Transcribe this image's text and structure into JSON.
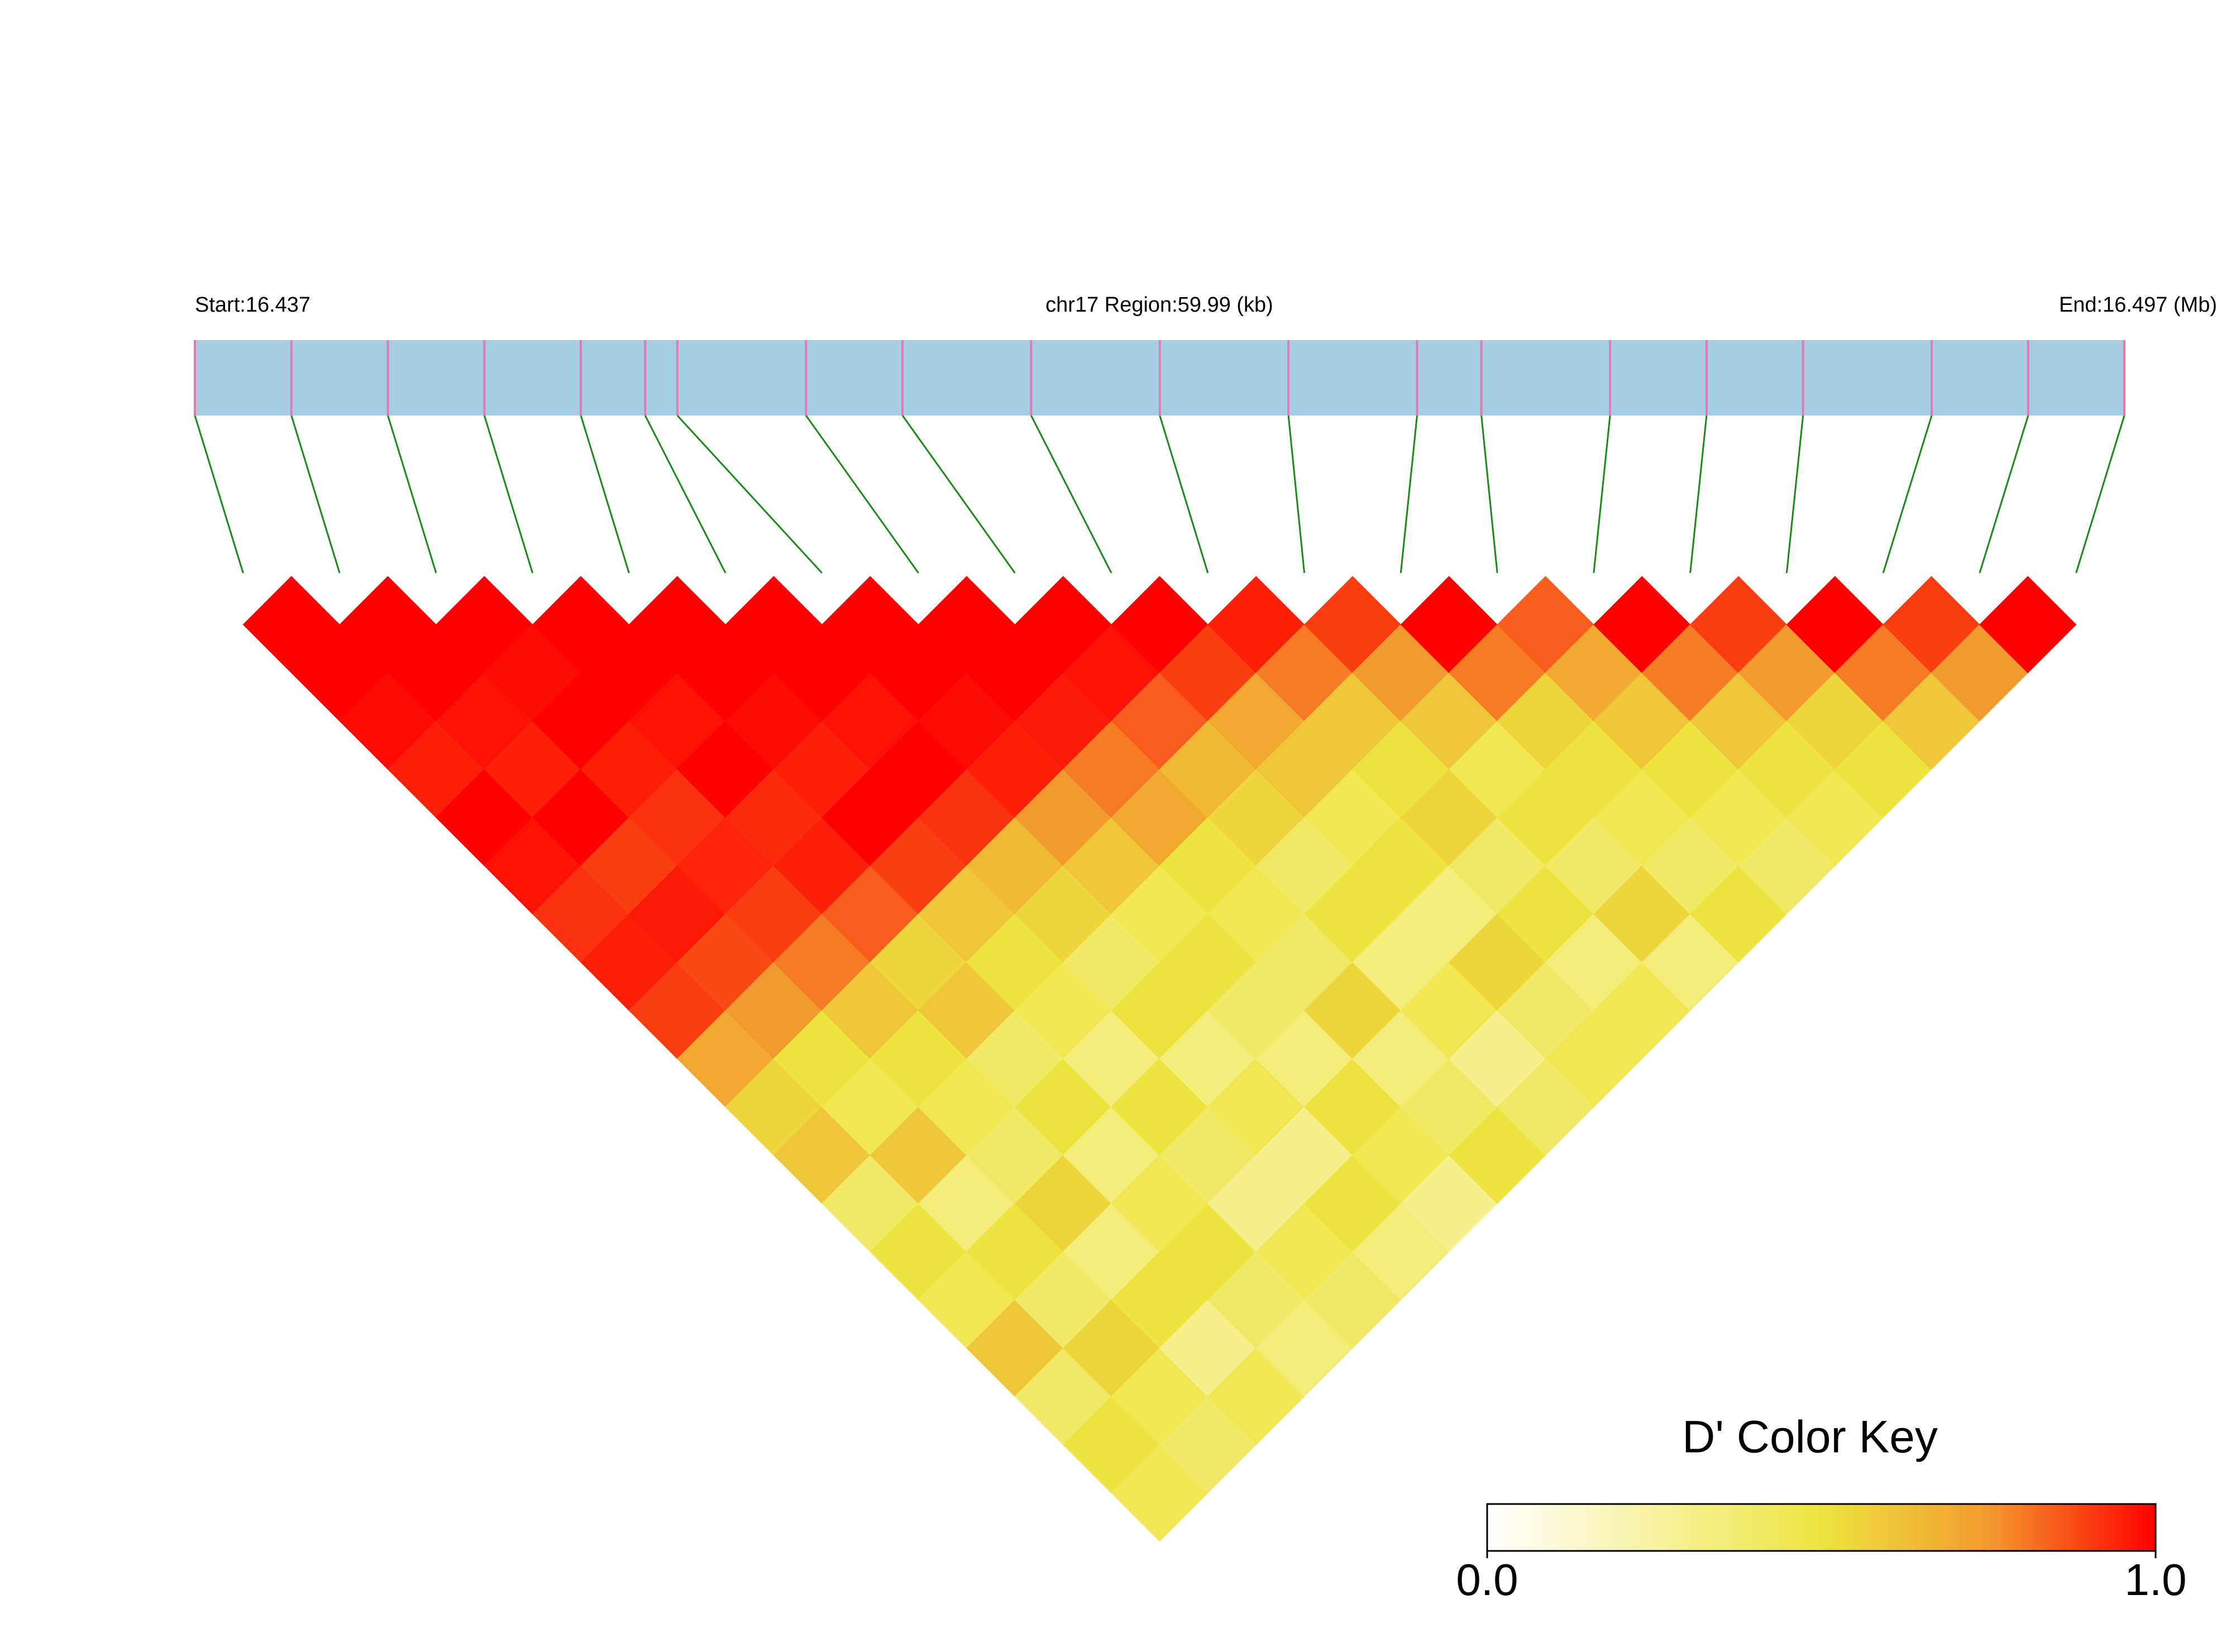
{
  "chart_data": {
    "type": "ld-heatmap",
    "start_label": "Start:16.437",
    "region_label": "chr17 Region:59.99 (kb)",
    "end_label": "End:16.497 (Mb)",
    "xlim": [
      0,
      59.99
    ],
    "snp_positions": [
      0,
      3,
      6,
      9,
      12,
      14,
      15,
      19,
      22,
      26,
      30,
      34,
      38,
      40,
      44,
      47,
      50,
      54,
      57,
      59.99
    ],
    "ld_matrix": [
      [
        1,
        1,
        0.98,
        0.95,
        1,
        0.97,
        0.92,
        0.95,
        0.9,
        0.7,
        0.55,
        0.6,
        0.4,
        0.5,
        0.45,
        0.6,
        0.4,
        0.5,
        0.45
      ],
      [
        1,
        1,
        0.97,
        0.95,
        1,
        0.9,
        0.96,
        0.88,
        0.75,
        0.5,
        0.45,
        0.6,
        0.35,
        0.5,
        0.4,
        0.55,
        0.45,
        0.4
      ],
      [
        1,
        0.98,
        1,
        0.95,
        0.92,
        0.94,
        0.9,
        0.8,
        0.6,
        0.5,
        0.45,
        0.4,
        0.55,
        0.35,
        0.5,
        0.3,
        0.45
      ],
      [
        1,
        1,
        0.97,
        1,
        0.93,
        0.95,
        0.85,
        0.55,
        0.6,
        0.4,
        0.5,
        0.35,
        0.45,
        0.5,
        0.4,
        0.35
      ],
      [
        1,
        1,
        0.98,
        0.95,
        1,
        0.9,
        0.6,
        0.5,
        0.45,
        0.35,
        0.5,
        0.4,
        0.3,
        0.45,
        0.4
      ],
      [
        1,
        1,
        0.97,
        1,
        0.92,
        0.65,
        0.55,
        0.4,
        0.5,
        0.35,
        0.45,
        0.3,
        0.5,
        0.35
      ],
      [
        1,
        1,
        0.98,
        0.95,
        0.75,
        0.6,
        0.45,
        0.5,
        0.4,
        0.35,
        0.5,
        0.45,
        0.3
      ],
      [
        1,
        1,
        0.96,
        0.8,
        0.7,
        0.5,
        0.45,
        0.4,
        0.55,
        0.35,
        0.4,
        0.5
      ],
      [
        1,
        0.97,
        0.85,
        0.65,
        0.55,
        0.4,
        0.5,
        0.35,
        0.45,
        0.3,
        0.4
      ],
      [
        1,
        0.9,
        0.7,
        0.6,
        0.45,
        0.5,
        0.35,
        0.55,
        0.4,
        0.45
      ],
      [
        0.95,
        0.8,
        0.6,
        0.5,
        0.55,
        0.4,
        0.5,
        0.35,
        0.45
      ],
      [
        0.9,
        0.75,
        0.6,
        0.45,
        0.5,
        0.4,
        0.55,
        0.35
      ],
      [
        1,
        0.8,
        0.55,
        0.5,
        0.45,
        0.4,
        0.5
      ],
      [
        0.85,
        0.7,
        0.6,
        0.5,
        0.45,
        0.4
      ],
      [
        1,
        0.8,
        0.6,
        0.5,
        0.45
      ],
      [
        0.9,
        0.75,
        0.55,
        0.5
      ],
      [
        1,
        0.8,
        0.6
      ],
      [
        0.9,
        0.75
      ],
      [
        1
      ]
    ],
    "key_title": "D' Color Key",
    "key_lim": [
      0,
      1
    ],
    "key_ticks": [
      {
        "value": 0,
        "label": "0.0"
      },
      {
        "value": 1,
        "label": "1.0"
      }
    ]
  }
}
